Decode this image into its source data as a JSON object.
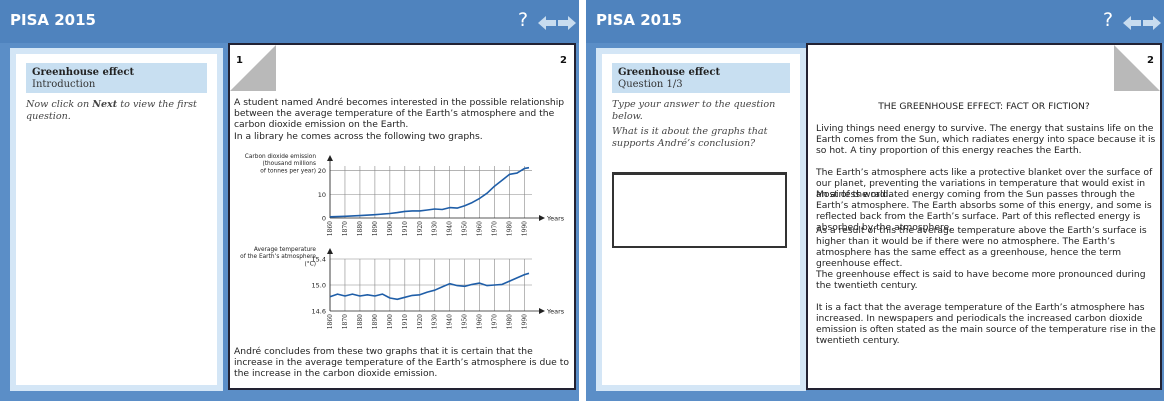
{
  "colors": {
    "topbar": "#4f83be",
    "frame": "#5b8ec7",
    "left_panel": "#d4e6f6",
    "unit_box": "#c8dff1",
    "graph_line": "#1f5ea8",
    "arrow": "#c8dcef"
  },
  "left_screen": {
    "app_title": "PISA 2015",
    "help_label": "?",
    "icons": {
      "back": "back-arrow-icon",
      "next": "next-arrow-icon"
    },
    "unit_title": "Greenhouse effect",
    "unit_subtitle": "Introduction",
    "instruction_prefix": "Now click on ",
    "instruction_bold": "Next",
    "instruction_suffix": " to view the first question.",
    "page_left": "1",
    "page_right": "2",
    "intro_para": "A student named André becomes interested in the possible relationship between the average temperature of the Earth’s atmosphere and the carbon dioxide emission on the Earth.",
    "library_line": "In a library he comes across the following two graphs.",
    "conclusion": "André concludes from these two graphs that it is certain that the increase in the average temperature of the Earth’s atmosphere is due to the increase in the carbon dioxide emission."
  },
  "right_screen": {
    "app_title": "PISA 2015",
    "help_label": "?",
    "icons": {
      "back": "back-arrow-icon",
      "next": "next-arrow-icon"
    },
    "unit_title": "Greenhouse effect",
    "unit_subtitle": "Question 1/3",
    "instruction_1": "Type your answer to the question below.",
    "instruction_2": "What is it about the graphs that supports André’s conclusion?",
    "answer_value": "",
    "page_right": "2",
    "heading": "THE GREENHOUSE EFFECT: FACT OR FICTION?",
    "para_1": "Living things need energy to survive. The energy that sustains life on the Earth comes from the Sun, which radiates energy into space because it is so hot. A tiny proportion of this energy reaches the Earth.",
    "para_2a": "The Earth’s atmosphere acts like a protective blanket over the surface of our planet, preventing the variations in temperature that would exist in an airless world.",
    "para_2b": "Most of the radiated energy coming from the Sun passes through the Earth’s atmosphere. The Earth absorbs some of this energy, and some is reflected back from the Earth’s surface. Part of this reflected energy is absorbed by the atmosphere.",
    "para_3": "As a result of this the average temperature above the Earth’s surface is higher than it would be if there were no atmosphere. The Earth’s atmosphere has the same effect as a greenhouse, hence the term greenhouse effect.",
    "para_4": "The greenhouse effect is said to have become more pronounced during the twentieth century.",
    "para_5": "It is a fact that the average temperature of the Earth’s atmosphere has increased. In newspapers and periodicals the increased carbon dioxide emission is often stated as the main source of the temperature rise in the twentieth century."
  },
  "chart_data": [
    {
      "type": "line",
      "ylabel": "Carbon dioxide emission (thousand millions of tonnes per year)",
      "xlabel": "Years",
      "yticks": [
        "0",
        "10",
        "20"
      ],
      "ylim": [
        0,
        22
      ],
      "xticks": [
        "1860",
        "1870",
        "1880",
        "1890",
        "1900",
        "1910",
        "1920",
        "1930",
        "1940",
        "1950",
        "1960",
        "1970",
        "1980",
        "1990"
      ],
      "xlim": [
        1860,
        1995
      ],
      "grid": true,
      "x": [
        1860,
        1870,
        1880,
        1890,
        1900,
        1905,
        1910,
        1915,
        1920,
        1925,
        1930,
        1935,
        1940,
        1945,
        1950,
        1955,
        1960,
        1965,
        1970,
        1975,
        1980,
        1985,
        1990,
        1993
      ],
      "y": [
        0.5,
        0.7,
        1.0,
        1.4,
        1.9,
        2.3,
        2.8,
        3.0,
        3.0,
        3.4,
        3.8,
        3.6,
        4.4,
        4.2,
        5.2,
        6.5,
        8.3,
        10.5,
        13.5,
        16.0,
        18.5,
        19.0,
        21.0,
        21.3
      ]
    },
    {
      "type": "line",
      "ylabel": "Average temperature of the Earth’s atmosphere (°C)",
      "xlabel": "Years",
      "yticks": [
        "14.6",
        "15.0",
        "15.4"
      ],
      "ylim": [
        14.6,
        15.4
      ],
      "xticks": [
        "1860",
        "1870",
        "1880",
        "1890",
        "1900",
        "1910",
        "1920",
        "1930",
        "1940",
        "1950",
        "1960",
        "1970",
        "1980",
        "1990"
      ],
      "xlim": [
        1860,
        1995
      ],
      "grid": true,
      "x": [
        1860,
        1865,
        1870,
        1875,
        1880,
        1885,
        1890,
        1895,
        1900,
        1905,
        1910,
        1915,
        1920,
        1925,
        1930,
        1935,
        1940,
        1945,
        1950,
        1955,
        1960,
        1965,
        1970,
        1975,
        1980,
        1985,
        1990,
        1993
      ],
      "y": [
        14.82,
        14.86,
        14.83,
        14.86,
        14.83,
        14.85,
        14.83,
        14.86,
        14.8,
        14.78,
        14.81,
        14.84,
        14.85,
        14.89,
        14.92,
        14.97,
        15.02,
        14.99,
        14.98,
        15.01,
        15.03,
        14.99,
        15.0,
        15.01,
        15.06,
        15.11,
        15.16,
        15.18
      ]
    }
  ]
}
